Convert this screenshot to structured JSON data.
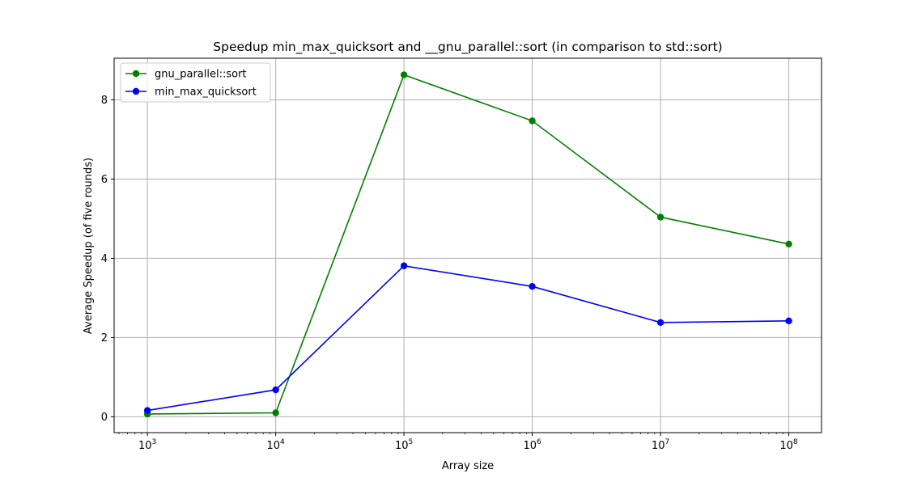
{
  "chart_data": {
    "type": "line",
    "title": "Speedup min_max_quicksort and __gnu_parallel::sort (in comparison to std::sort)",
    "xlabel": "Array size",
    "ylabel": "Average Speedup (of five rounds)",
    "xscale": "log",
    "x": [
      1000,
      10000,
      100000,
      1000000,
      10000000,
      100000000
    ],
    "x_tick_labels": [
      {
        "base": "10",
        "exp": "3"
      },
      {
        "base": "10",
        "exp": "4"
      },
      {
        "base": "10",
        "exp": "5"
      },
      {
        "base": "10",
        "exp": "6"
      },
      {
        "base": "10",
        "exp": "7"
      },
      {
        "base": "10",
        "exp": "8"
      }
    ],
    "y_ticks": [
      0,
      2,
      4,
      6,
      8
    ],
    "y_tick_labels": [
      "0",
      "2",
      "4",
      "6",
      "8"
    ],
    "xlim": [
      550,
      180000000
    ],
    "ylim": [
      -0.4,
      9.05
    ],
    "grid": true,
    "legend_position": "top-left",
    "series": [
      {
        "name": "gnu_parallel::sort",
        "color": "#008000",
        "marker": "circle",
        "values": [
          0.07,
          0.1,
          8.63,
          7.47,
          5.04,
          4.36
        ]
      },
      {
        "name": "min_max_quicksort",
        "color": "#0000ff",
        "marker": "circle",
        "values": [
          0.16,
          0.68,
          3.81,
          3.29,
          2.38,
          2.42
        ]
      }
    ]
  }
}
